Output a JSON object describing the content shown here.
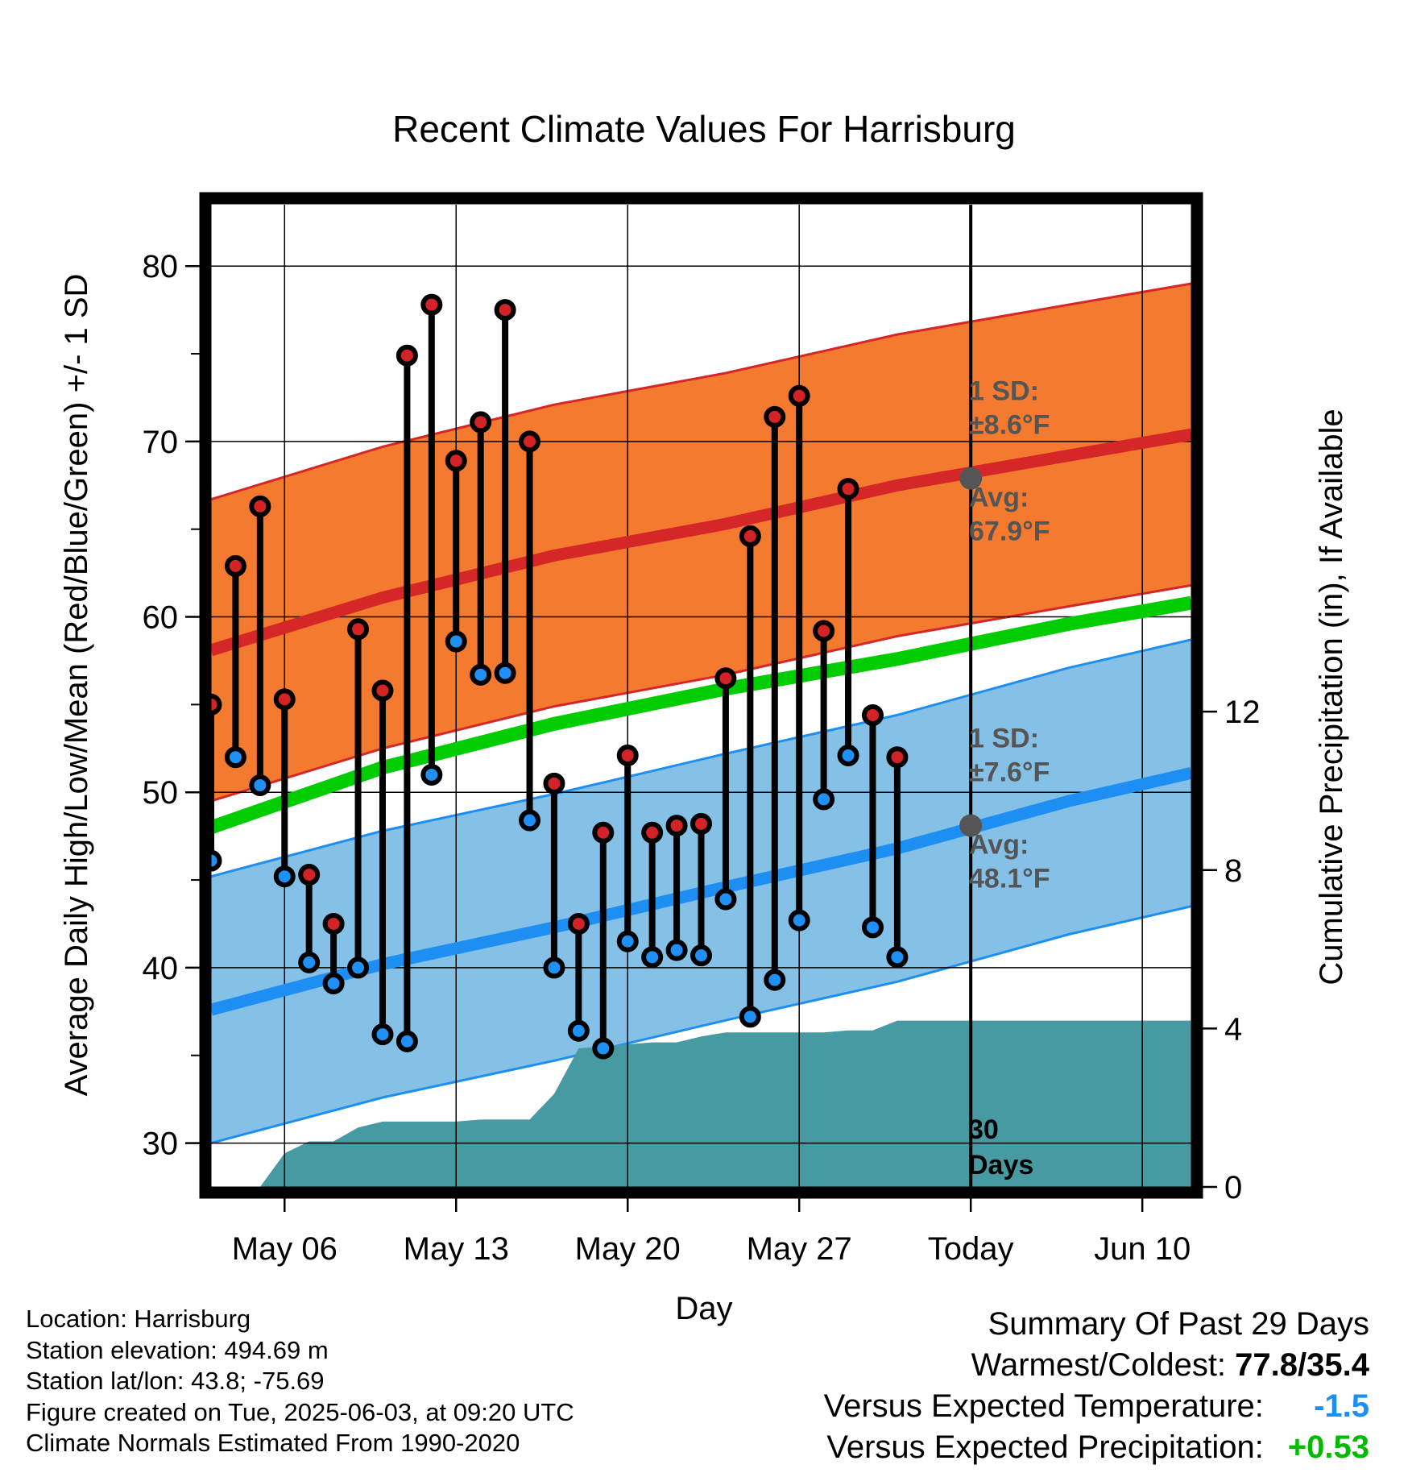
{
  "chart_data": {
    "type": "line",
    "title": "Recent Climate Values For Harrisburg",
    "xlabel": "Day",
    "ylabel": "Average Daily High/Low/Mean (Red/Blue/Green) +/- 1 SD",
    "y2label": "Cumulative Precipitation (in), If Available",
    "ylim": [
      27.5,
      83.5
    ],
    "y2lim": [
      0,
      24.8
    ],
    "xlim": [
      "May 03",
      "Jun 12"
    ],
    "yticks": [
      30,
      40,
      50,
      60,
      70,
      80
    ],
    "y2ticks": [
      0,
      4,
      8,
      12
    ],
    "xticks": [
      {
        "date": "May 06",
        "label": "May 06"
      },
      {
        "date": "May 13",
        "label": "May 13"
      },
      {
        "date": "May 20",
        "label": "May 20"
      },
      {
        "date": "May 27",
        "label": "May 27"
      },
      {
        "date": "Jun 03",
        "label": "Today"
      },
      {
        "date": "Jun 10",
        "label": "Jun 10"
      }
    ],
    "grid": true,
    "today_line": {
      "date": "Jun 03",
      "label": "30 Days"
    },
    "normals": {
      "dates": [
        "May 03",
        "May 10",
        "May 17",
        "May 24",
        "May 31",
        "Jun 07",
        "Jun 12"
      ],
      "high_avg": [
        58.1,
        61.1,
        63.5,
        65.3,
        67.5,
        69.2,
        70.4
      ],
      "high_sd": 8.6,
      "low_avg": [
        37.6,
        40.2,
        42.3,
        44.6,
        46.8,
        49.5,
        51.1
      ],
      "low_sd": 7.6,
      "mean_avg": [
        48.0,
        51.4,
        53.9,
        55.9,
        57.6,
        59.6,
        60.8
      ]
    },
    "annotations": [
      {
        "series": "high",
        "sd_text": "1 SD:",
        "sd_value": "±8.6°F",
        "avg_text": "Avg:",
        "avg_value": "67.9°F",
        "value": 67.9
      },
      {
        "series": "low",
        "sd_text": "1 SD:",
        "sd_value": "±7.6°F",
        "avg_text": "Avg:",
        "avg_value": "48.1°F",
        "value": 48.1
      }
    ],
    "observed": {
      "dates": [
        "May 03",
        "May 04",
        "May 05",
        "May 06",
        "May 07",
        "May 08",
        "May 09",
        "May 10",
        "May 11",
        "May 12",
        "May 13",
        "May 14",
        "May 15",
        "May 16",
        "May 17",
        "May 18",
        "May 19",
        "May 20",
        "May 21",
        "May 22",
        "May 23",
        "May 24",
        "May 25",
        "May 26",
        "May 27",
        "May 28",
        "May 29",
        "May 30",
        "May 31",
        "Jun 01"
      ],
      "high": [
        55.0,
        62.9,
        66.3,
        55.3,
        45.3,
        42.5,
        59.3,
        55.8,
        74.9,
        77.8,
        68.9,
        71.1,
        77.5,
        70.0,
        50.5,
        42.5,
        47.7,
        52.1,
        47.7,
        48.1,
        48.2,
        56.5,
        64.6,
        71.4,
        72.6,
        59.2,
        67.3,
        54.4,
        52.0,
        null
      ],
      "low": [
        46.1,
        52.0,
        50.4,
        45.2,
        40.3,
        39.1,
        40.0,
        36.2,
        35.8,
        51.0,
        58.6,
        56.7,
        56.8,
        48.4,
        40.0,
        36.4,
        35.4,
        41.5,
        40.6,
        41.0,
        40.7,
        43.9,
        37.2,
        39.3,
        42.7,
        49.6,
        52.1,
        42.3,
        40.6,
        null
      ]
    },
    "precip_cumulative": {
      "dates": [
        "May 03",
        "May 04",
        "May 05",
        "May 06",
        "May 07",
        "May 08",
        "May 09",
        "May 10",
        "May 11",
        "May 12",
        "May 13",
        "May 14",
        "May 15",
        "May 16",
        "May 17",
        "May 18",
        "May 19",
        "May 20",
        "May 21",
        "May 22",
        "May 23",
        "May 24",
        "May 25",
        "May 26",
        "May 27",
        "May 28",
        "May 29",
        "May 30",
        "May 31",
        "Jun 01",
        "Jun 03",
        "Jun 12"
      ],
      "values": [
        0.0,
        0.0,
        0.0,
        0.85,
        1.15,
        1.15,
        1.5,
        1.65,
        1.65,
        1.65,
        1.65,
        1.7,
        1.7,
        1.7,
        2.35,
        3.5,
        3.55,
        3.6,
        3.65,
        3.65,
        3.8,
        3.9,
        3.9,
        3.9,
        3.9,
        3.9,
        3.95,
        3.95,
        4.2,
        4.2,
        4.2,
        4.2
      ]
    },
    "colors": {
      "high_band": "#f47a2f",
      "high_line": "#d62728",
      "low_band": "#85c1e6",
      "low_line": "#1e8ff2",
      "mean_line": "#00cc00",
      "precip": "#4799a2",
      "high_marker": "#d42327",
      "low_marker": "#1f90f5",
      "annotation": "#555555",
      "today_dot": "#555555"
    }
  },
  "footer": {
    "location": "Location: Harrisburg",
    "elevation": "Station elevation: 494.69 m",
    "latlon": "Station lat/lon: 43.8; -75.69",
    "created": "Figure created on Tue, 2025-06-03, at 09:20 UTC",
    "normals": "Climate Normals Estimated From 1990-2020"
  },
  "summary": {
    "heading": "Summary Of Past 29 Days",
    "warm_cold_label": "Warmest/Coldest:",
    "warm_cold_value": "77.8/35.4",
    "temp_label": "Versus Expected Temperature:",
    "temp_value": "-1.5",
    "temp_color": "#1e8ff2",
    "precip_label": "Versus Expected Precipitation:",
    "precip_value": "+0.53",
    "precip_color": "#00bb00"
  }
}
